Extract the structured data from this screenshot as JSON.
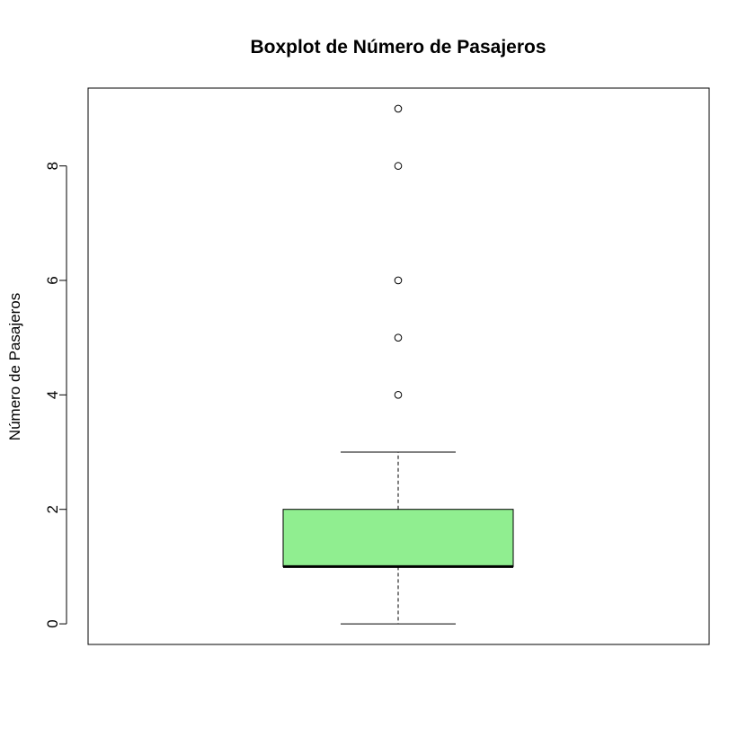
{
  "chart_data": {
    "type": "boxplot",
    "title": "Boxplot de Número de Pasajeros",
    "xlabel": "",
    "ylabel": "Número de Pasajeros",
    "yticks": [
      0,
      2,
      4,
      6,
      8
    ],
    "ytick_labels": [
      "0",
      "2",
      "4",
      "6",
      "8"
    ],
    "ylim": [
      -0.36,
      9.36
    ],
    "box": {
      "min": 0,
      "q1": 1,
      "median": 1,
      "q3": 2,
      "whisker_high": 3,
      "outliers": [
        4,
        5,
        6,
        8,
        9
      ]
    },
    "colors": {
      "box_fill": "#90EE90",
      "stroke": "#000000"
    },
    "grid": false,
    "legend": "none"
  }
}
